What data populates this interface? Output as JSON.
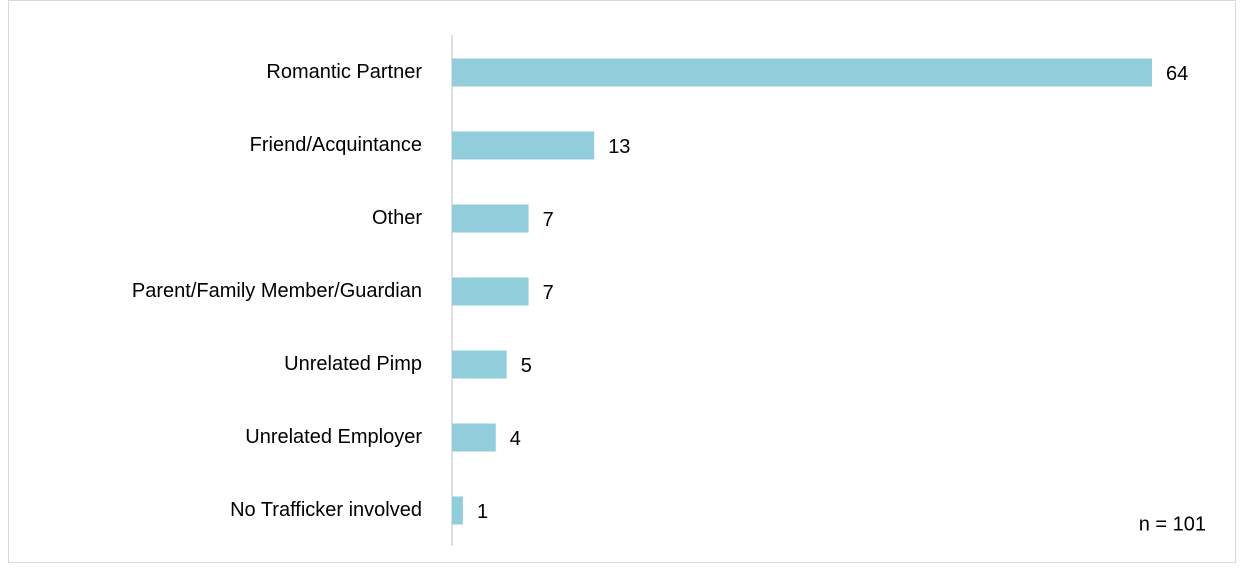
{
  "chart_data": {
    "type": "bar",
    "orientation": "horizontal",
    "categories": [
      "Romantic Partner",
      "Friend/Acquintance",
      "Other",
      "Parent/Family Member/Guardian",
      "Unrelated Pimp",
      "Unrelated Employer",
      "No Trafficker involved"
    ],
    "values": [
      64,
      13,
      7,
      7,
      5,
      4,
      1
    ],
    "color": "#92cddc",
    "annotation": "n = 101"
  }
}
